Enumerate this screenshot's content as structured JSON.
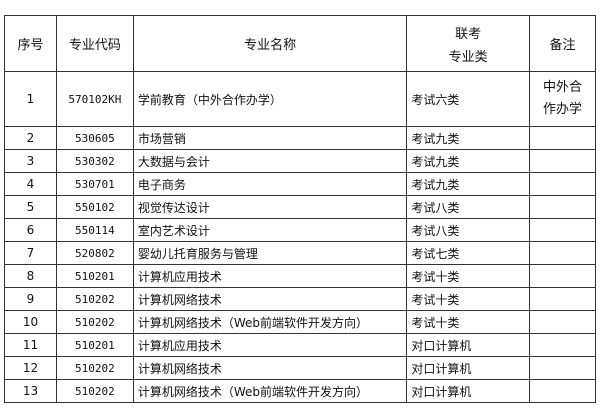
{
  "headers": [
    "序号",
    "专业代码",
    "专业名称",
    "联考\n专业类",
    "备注"
  ],
  "header_line1": "联考",
  "header_line2": "专业类",
  "rows": [
    {
      "no": "1",
      "code": "570102KH",
      "name": "学前教育（中外合作办学）",
      "cat": "考试六类",
      "note": "中外合作办学",
      "note_l1": "中外合",
      "note_l2": "作办学"
    },
    {
      "no": "2",
      "code": "530605",
      "name": "市场营销",
      "cat": "考试九类",
      "note": ""
    },
    {
      "no": "3",
      "code": "530302",
      "name": "大数据与会计",
      "cat": "考试九类",
      "note": ""
    },
    {
      "no": "4",
      "code": "530701",
      "name": "电子商务",
      "cat": "考试九类",
      "note": ""
    },
    {
      "no": "5",
      "code": "550102",
      "name": "视觉传达设计",
      "cat": "考试八类",
      "note": ""
    },
    {
      "no": "6",
      "code": "550114",
      "name": "室内艺术设计",
      "cat": "考试八类",
      "note": ""
    },
    {
      "no": "7",
      "code": "520802",
      "name": "婴幼儿托育服务与管理",
      "cat": "考试七类",
      "note": ""
    },
    {
      "no": "8",
      "code": "510201",
      "name": "计算机应用技术",
      "cat": "考试十类",
      "note": ""
    },
    {
      "no": "9",
      "code": "510202",
      "name": "计算机网络技术",
      "cat": "考试十类",
      "note": ""
    },
    {
      "no": "10",
      "code": "510202",
      "name": "计算机网络技术（Web前端软件开发方向）",
      "cat": "考试十类",
      "note": ""
    },
    {
      "no": "11",
      "code": "510201",
      "name": "计算机应用技术",
      "cat": "对口计算机",
      "note": ""
    },
    {
      "no": "12",
      "code": "510202",
      "name": "计算机网络技术",
      "cat": "对口计算机",
      "note": ""
    },
    {
      "no": "13",
      "code": "510202",
      "name": "计算机网络技术（Web前端软件开发方向）",
      "cat": "对口计算机",
      "note": ""
    }
  ]
}
